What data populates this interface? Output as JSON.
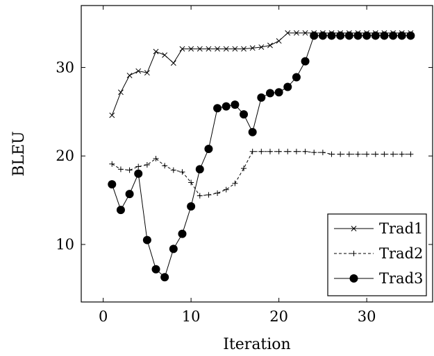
{
  "chart_data": {
    "type": "line",
    "xlabel": "Iteration",
    "ylabel": "BLEU",
    "xlim": [
      -2.5,
      37.5
    ],
    "ylim": [
      3.5,
      37.0
    ],
    "xticks": [
      0,
      10,
      20,
      30
    ],
    "yticks": [
      10,
      20,
      30
    ],
    "grid": false,
    "legend_position": "bottom-right",
    "x": [
      1,
      2,
      3,
      4,
      5,
      6,
      7,
      8,
      9,
      10,
      11,
      12,
      13,
      14,
      15,
      16,
      17,
      18,
      19,
      20,
      21,
      22,
      23,
      24,
      25,
      26,
      27,
      28,
      29,
      30,
      31,
      32,
      33,
      34,
      35
    ],
    "series": [
      {
        "name": "Trad1",
        "style": "solid-x",
        "values": [
          24.6,
          27.2,
          29.1,
          29.6,
          29.4,
          31.8,
          31.4,
          30.5,
          32.1,
          32.1,
          32.1,
          32.1,
          32.1,
          32.1,
          32.1,
          32.1,
          32.2,
          32.3,
          32.5,
          33.0,
          33.9,
          33.9,
          33.9,
          33.9,
          33.9,
          33.9,
          33.9,
          33.9,
          33.9,
          33.9,
          33.9,
          33.9,
          33.9,
          33.9,
          33.9
        ]
      },
      {
        "name": "Trad2",
        "style": "dashed-plus",
        "values": [
          19.1,
          18.5,
          18.4,
          18.8,
          19.0,
          19.7,
          18.9,
          18.4,
          18.2,
          17.0,
          15.5,
          15.6,
          15.8,
          16.2,
          16.9,
          18.6,
          20.5,
          20.5,
          20.5,
          20.5,
          20.5,
          20.5,
          20.5,
          20.4,
          20.4,
          20.2,
          20.2,
          20.2,
          20.2,
          20.2,
          20.2,
          20.2,
          20.2,
          20.2,
          20.2
        ]
      },
      {
        "name": "Trad3",
        "style": "solid-dot",
        "values": [
          16.8,
          13.9,
          15.7,
          18.0,
          10.5,
          7.2,
          6.3,
          9.5,
          11.2,
          14.3,
          18.5,
          20.8,
          25.4,
          25.6,
          25.8,
          24.7,
          22.7,
          26.6,
          27.1,
          27.2,
          27.8,
          28.9,
          30.7,
          33.6,
          33.6,
          33.6,
          33.6,
          33.6,
          33.6,
          33.6,
          33.6,
          33.6,
          33.6,
          33.6,
          33.6
        ]
      }
    ]
  }
}
